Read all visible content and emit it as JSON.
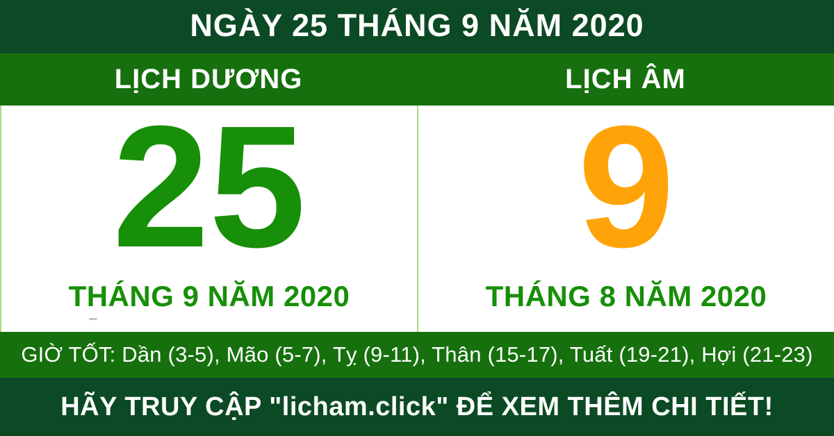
{
  "header": {
    "title": "NGÀY 25 THÁNG 9 NĂM 2020"
  },
  "solar": {
    "header": "LỊCH DƯƠNG",
    "day": "25",
    "month_label": "THÁNG 9 NĂM 2020"
  },
  "lunar": {
    "header": "LỊCH ÂM",
    "day": "9",
    "month_label": "THÁNG 8 NĂM 2020"
  },
  "good_hours": {
    "prefix": "GIỜ TỐT:",
    "hours": [
      "Dần (3-5)",
      "Mão (5-7)",
      "Tỵ (9-11)",
      "Thân (15-17)",
      "Tuất (19-21)",
      "Hợi (21-23)"
    ],
    "display": "GIỜ TỐT: Dần (3-5), Mão (5-7), Tỵ (9-11), Thân (15-17), Tuất (19-21), Hợi (21-23)"
  },
  "footer": {
    "text": "HÃY TRUY CẬP \"licham.click\" ĐỂ XEM THÊM CHI TIẾT!"
  },
  "colors": {
    "dark_green": "#0b4a24",
    "medium_green": "#16700d",
    "accent_green": "#178f08",
    "accent_orange": "#ffa408",
    "divider_light_green": "#a9d97f",
    "text_white": "#ffffff"
  }
}
